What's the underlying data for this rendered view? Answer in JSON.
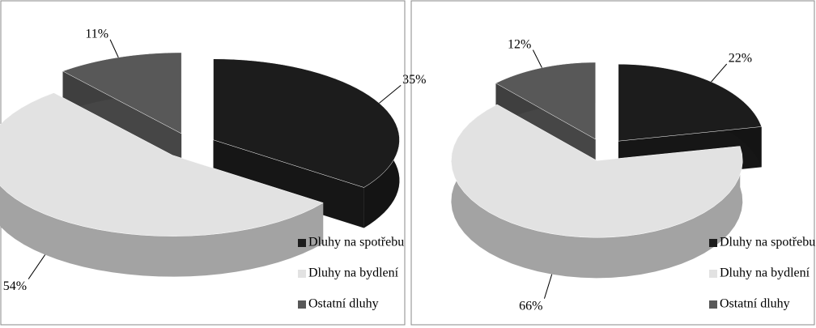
{
  "chart_data": [
    {
      "type": "pie",
      "categories": [
        "Dluhy na spotřebu",
        "Dluhy na bydlení",
        "Ostatní dluhy"
      ],
      "values": [
        35,
        54,
        11
      ],
      "value_labels": [
        "35%",
        "54%",
        "11%"
      ],
      "colors": [
        "#1c1c1c",
        "#e2e2e2",
        "#585858"
      ],
      "legend": "bottom-right"
    },
    {
      "type": "pie",
      "categories": [
        "Dluhy na spotřebu",
        "Dluhy na bydlení",
        "Ostatní dluhy"
      ],
      "values": [
        22,
        66,
        12
      ],
      "value_labels": [
        "22%",
        "66%",
        "12%"
      ],
      "colors": [
        "#1c1c1c",
        "#e2e2e2",
        "#585858"
      ],
      "legend": "bottom-right"
    }
  ]
}
